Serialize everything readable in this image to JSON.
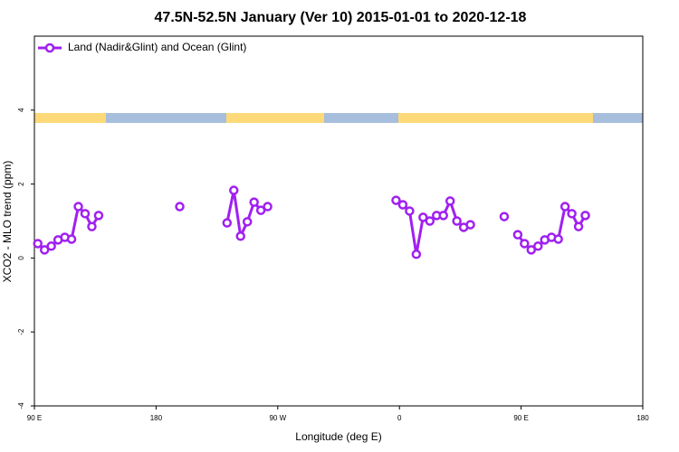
{
  "chart_data": {
    "type": "line",
    "title": "47.5N-52.5N January (Ver 10)   2015-01-01 to 2020-12-18",
    "x_label": "Longitude (deg E)",
    "y_label": "XCO2 - MLO trend (ppm)",
    "xlim": [
      90,
      540
    ],
    "ylim": [
      -4,
      6
    ],
    "xticks": [
      {
        "value": 90,
        "label": "90 E"
      },
      {
        "value": 180,
        "label": "180"
      },
      {
        "value": 270,
        "label": "90 W"
      },
      {
        "value": 360,
        "label": "0"
      },
      {
        "value": 450,
        "label": "90 E"
      },
      {
        "value": 540,
        "label": "180"
      }
    ],
    "yticks": [
      -4,
      -2,
      0,
      2,
      4
    ],
    "legend": "top-left",
    "x": [
      92.5,
      97.5,
      102.5,
      107.5,
      112.5,
      117.5,
      122.5,
      127.5,
      132.5,
      137.5,
      142.5,
      197.5,
      202.5,
      232.5,
      237.5,
      242.5,
      247.5,
      252.5,
      257.5,
      262.5,
      267.5,
      357.5,
      362.5,
      367.5,
      372.5,
      377.5,
      382.5,
      387.5,
      392.5,
      397.5,
      402.5,
      407.5,
      412.5,
      417.5,
      437.5,
      442.5,
      447.5,
      452.5,
      457.5,
      462.5,
      467.5,
      472.5,
      477.5,
      482.5,
      487.5,
      492.5,
      497.5
    ],
    "series": [
      {
        "name": "Land (Nadir&Glint) and Ocean (Glint)",
        "color": "#a020f0",
        "values": [
          0.39,
          0.22,
          0.32,
          0.49,
          0.56,
          0.51,
          1.39,
          1.2,
          0.85,
          1.15,
          null,
          1.39,
          null,
          0.95,
          1.83,
          0.59,
          0.98,
          1.51,
          1.29,
          1.39,
          null,
          1.56,
          1.44,
          1.27,
          0.1,
          1.1,
          1.0,
          1.15,
          1.15,
          1.54,
          1.0,
          0.83,
          0.9,
          null,
          1.12,
          null,
          0.63,
          0.39,
          0.22,
          0.32,
          0.49,
          0.56,
          0.51,
          1.39,
          1.2,
          0.85,
          1.15
        ]
      }
    ]
  }
}
